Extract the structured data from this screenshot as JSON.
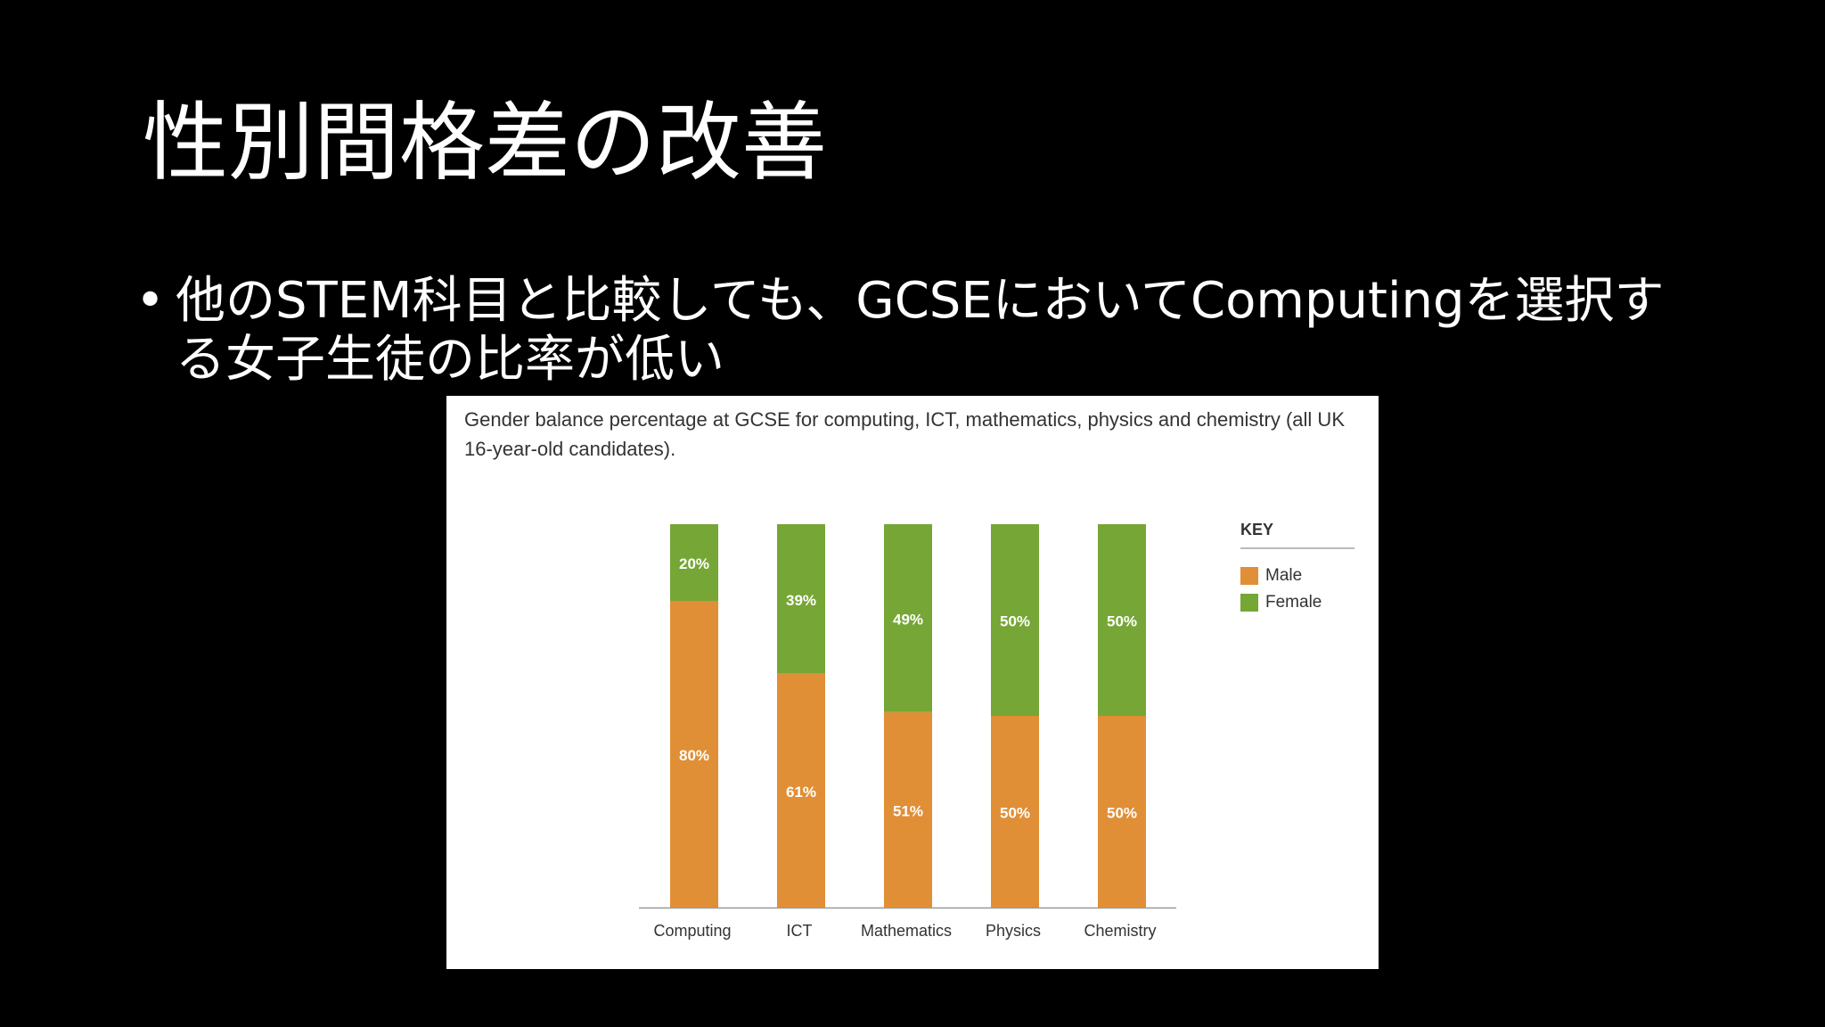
{
  "slide": {
    "title": "性別間格差の改善",
    "bullet_symbol": "•",
    "bullet_text": "他のSTEM科目と比較しても、GCSEにおいてComputingを選択する女子生徒の比率が低い"
  },
  "chart_data": {
    "type": "bar",
    "stacked": true,
    "title": "Gender balance percentage at GCSE for computing, ICT, mathematics, physics and chemistry (all UK 16-year-old candidates).",
    "categories": [
      "Computing",
      "ICT",
      "Mathematics",
      "Physics",
      "Chemistry"
    ],
    "series": [
      {
        "name": "Male",
        "values": [
          80,
          61,
          51,
          50,
          50
        ],
        "color": "#e08f36",
        "labels": [
          "80%",
          "61%",
          "51%",
          "50%",
          "50%"
        ]
      },
      {
        "name": "Female",
        "values": [
          20,
          39,
          49,
          50,
          50
        ],
        "color": "#76a636",
        "labels": [
          "20%",
          "39%",
          "49%",
          "50%",
          "50%"
        ]
      }
    ],
    "ylim": [
      0,
      100
    ],
    "xlabel": "",
    "ylabel": "",
    "grid": false,
    "legend": {
      "title": "KEY",
      "placement": "right"
    }
  }
}
